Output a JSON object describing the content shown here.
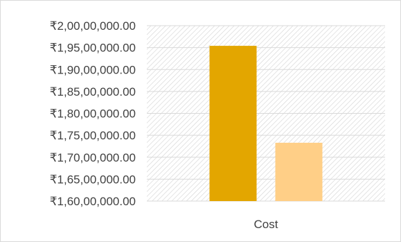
{
  "chart_data": {
    "type": "bar",
    "title": "",
    "xlabel": "",
    "ylabel": "",
    "categories": [
      "Cost"
    ],
    "series": [
      {
        "values": [
          19540000
        ],
        "color": "#e3a600"
      },
      {
        "values": [
          17330000
        ],
        "color": "#ffcf87"
      }
    ],
    "ylim": [
      16000000,
      20000000
    ],
    "ytick_step": 500000,
    "y_tick_labels": [
      "₹1,60,00,000.00",
      "₹1,65,00,000.00",
      "₹1,70,00,000.00",
      "₹1,75,00,000.00",
      "₹1,80,00,000.00",
      "₹1,85,00,000.00",
      "₹1,90,00,000.00",
      "₹1,95,00,000.00",
      "₹2,00,00,000.00"
    ],
    "grid": true,
    "plot_background": "hatched",
    "legend": "none"
  }
}
